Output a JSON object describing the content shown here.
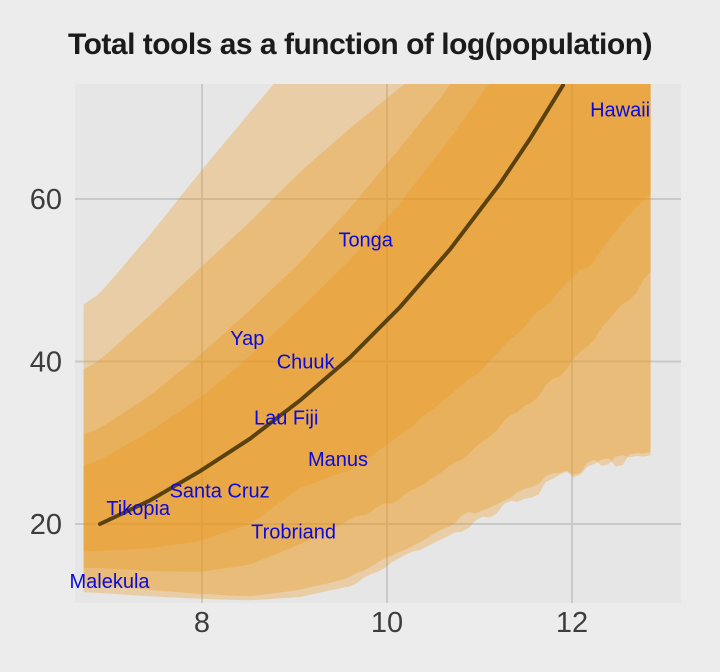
{
  "title": "Total tools as a function of log(population)",
  "colors": {
    "page_bg": "#edecec",
    "panel_bg": "#e7e6e6",
    "grid": "#c9c9c9",
    "band_fill": "#ec9414",
    "band_alpha": 0.3,
    "curve": "#5a410f",
    "island_label": "#0909e0",
    "tick_label": "#3d3d3d",
    "title_color": "#1b1b1b"
  },
  "chart_data": {
    "type": "line",
    "title": "Total tools as a function of log(population)",
    "xlabel": "",
    "ylabel": "",
    "x_ticks": [
      8,
      10,
      12
    ],
    "y_ticks": [
      20,
      40,
      60
    ],
    "x_range": [
      6.62,
      13.19
    ],
    "y_range": [
      10.1,
      74.1
    ],
    "grid": true,
    "legend": false,
    "curve": {
      "name": "posterior mean",
      "x": [
        6.897,
        7.438,
        7.978,
        8.519,
        9.059,
        9.6,
        10.141,
        10.681,
        11.222,
        11.546,
        11.903
      ],
      "y": [
        20.0,
        22.9,
        26.5,
        30.5,
        35.2,
        40.5,
        46.7,
        53.8,
        61.9,
        67.4,
        74.0
      ]
    },
    "band_x": [
      6.72,
      6.897,
      7.438,
      7.978,
      8.519,
      9.059,
      9.6,
      10.141,
      10.681,
      11.222,
      11.762,
      12.303,
      12.876
    ],
    "bands": [
      {
        "name": "outer interval",
        "top": [
          47.0,
          48.4,
          55.6,
          63.3,
          70.7,
          78.0,
          85.0,
          92.0,
          99.0,
          106.0,
          113.0,
          120.0,
          128.0
        ],
        "bottom": [
          11.6,
          11.5,
          11.1,
          10.8,
          10.6,
          11.0,
          12.4,
          15.6,
          18.6,
          22.0,
          24.9,
          27.4,
          28.8
        ]
      },
      {
        "name": "wide interval",
        "top": [
          39.0,
          40.2,
          45.7,
          51.5,
          57.2,
          63.3,
          68.7,
          73.7,
          78.3,
          83.0,
          88.0,
          93.0,
          98.0
        ],
        "bottom": [
          12.6,
          12.5,
          11.9,
          11.4,
          11.1,
          11.9,
          13.4,
          16.6,
          19.9,
          23.0,
          25.7,
          27.9,
          29.1
        ]
      },
      {
        "name": "middle interval",
        "top": [
          31.0,
          31.8,
          35.8,
          40.8,
          46.3,
          52.2,
          58.9,
          66.3,
          74.0,
          81.0,
          88.0,
          95.0,
          103.0
        ],
        "bottom": [
          14.6,
          14.6,
          14.2,
          14.1,
          15.0,
          17.5,
          20.5,
          23.2,
          27.0,
          31.8,
          37.4,
          43.8,
          50.9
        ]
      },
      {
        "name": "inner interval",
        "top": [
          27.2,
          27.9,
          31.4,
          35.5,
          40.7,
          46.5,
          52.5,
          59.5,
          67.5,
          76.1,
          84.0,
          92.0,
          101.0
        ],
        "bottom": [
          16.6,
          16.7,
          17.0,
          17.9,
          20.0,
          24.4,
          26.6,
          30.8,
          35.8,
          41.2,
          47.1,
          53.7,
          60.8
        ]
      }
    ],
    "islands": [
      {
        "name": "Malekula",
        "x": 7.0,
        "y": 13.0
      },
      {
        "name": "Tikopia",
        "x": 7.31,
        "y": 22.0
      },
      {
        "name": "Santa Cruz",
        "x": 8.19,
        "y": 24.1
      },
      {
        "name": "Yap",
        "x": 8.49,
        "y": 42.9
      },
      {
        "name": "Lau Fiji",
        "x": 8.91,
        "y": 33.1
      },
      {
        "name": "Chuuk",
        "x": 9.12,
        "y": 40.0
      },
      {
        "name": "Trobriand",
        "x": 8.99,
        "y": 19.1
      },
      {
        "name": "Manus",
        "x": 9.47,
        "y": 28.0
      },
      {
        "name": "Tonga",
        "x": 9.77,
        "y": 55.0
      },
      {
        "name": "Hawaii",
        "x": 12.52,
        "y": 71.0
      }
    ]
  }
}
